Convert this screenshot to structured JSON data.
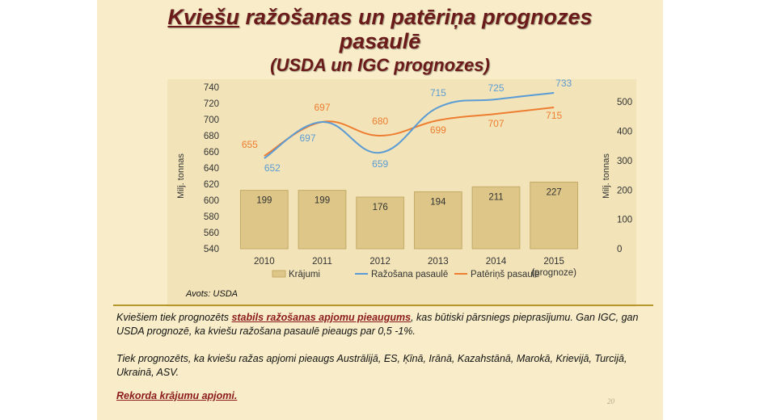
{
  "title": {
    "line1_underlined": "Kviešu",
    "line1_rest": " ražošanas un patēriņa prognozes",
    "line2": "pasaulē",
    "line3": "(USDA un IGC prognozes)"
  },
  "source": "Avots: USDA",
  "paragraphs": {
    "p1_pre": "Kviešiem tiek prognozēts ",
    "p1_hl": "stabils ražošanas apjomu pieaugums",
    "p1_post": ", kas būtiski pārsniegs pieprasījumu. Gan IGC, gan USDA prognozē, ka kviešu ražošana pasaulē pieaugs par  0,5 -1%.",
    "p2": "Tiek prognozēts, ka kviešu ražas apjomi pieaugs Austrālijā, ES, Ķīnā, Irānā, Kazahstānā, Marokā, Krievijā, Turcijā, Ukrainā, ASV.",
    "p3_hl": "Rekorda krājumu apjomi."
  },
  "page_number": "20",
  "colors": {
    "bar": "#ddc687",
    "bar_stroke": "#c4aa66",
    "production": "#5b9bd5",
    "consumption": "#ed7d31",
    "title": "#6b1a1a"
  },
  "chart_data": {
    "type": "bar+line",
    "categories": [
      "2010",
      "2011",
      "2012",
      "2013",
      "2014",
      "2015"
    ],
    "category_sublabels": [
      "",
      "",
      "",
      "",
      "",
      "(prognoze)"
    ],
    "series": [
      {
        "name": "Krājumi",
        "type": "bar",
        "axis": "right",
        "values": [
          199,
          199,
          176,
          194,
          211,
          227
        ]
      },
      {
        "name": "Ražošana pasaulē",
        "type": "line",
        "axis": "left",
        "values": [
          652,
          697,
          659,
          715,
          725,
          733
        ]
      },
      {
        "name": "Patēriņš pasaulē",
        "type": "line",
        "axis": "left",
        "values": [
          655,
          697,
          680,
          699,
          707,
          715
        ]
      }
    ],
    "ylabel_left": "Milj. tonnas",
    "ylabel_right": "Milj. tonnas",
    "ylim_left": [
      540,
      740
    ],
    "ylim_right": [
      0,
      550
    ],
    "yticks_left": [
      540,
      560,
      580,
      600,
      620,
      640,
      660,
      680,
      700,
      720,
      740
    ],
    "yticks_right": [
      0,
      100,
      200,
      300,
      400,
      500
    ],
    "legend_position": "bottom",
    "grid": false
  }
}
